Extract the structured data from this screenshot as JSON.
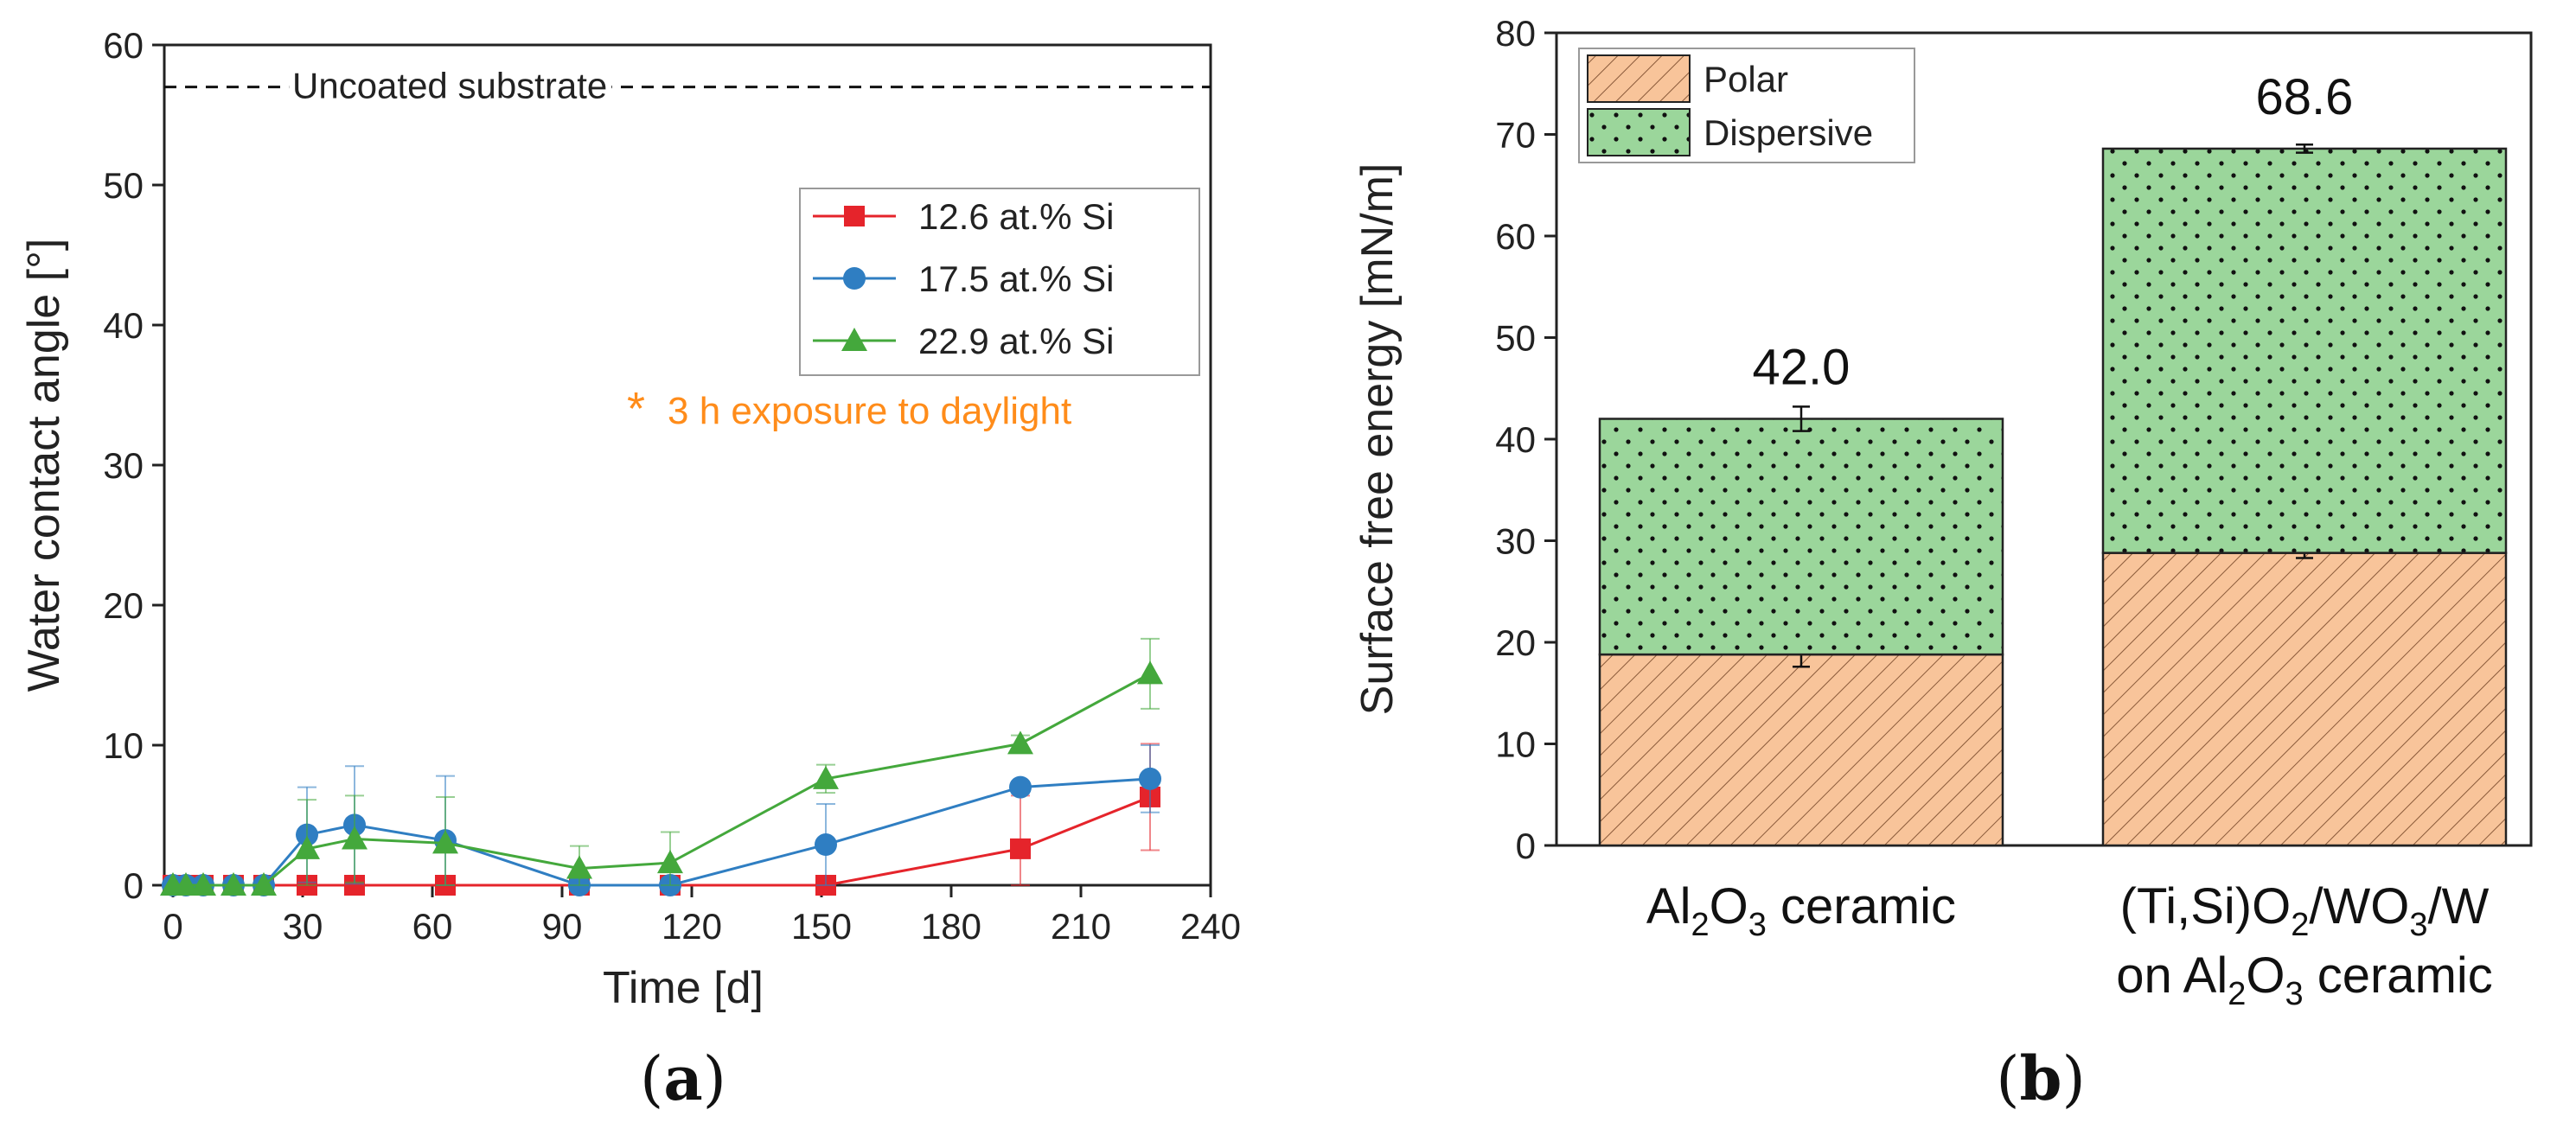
{
  "panels": {
    "a": {
      "label_open": "(",
      "label_letter": "a",
      "label_close": ")"
    },
    "b": {
      "label_open": "(",
      "label_letter": "b",
      "label_close": ")"
    }
  },
  "chart_data": [
    {
      "type": "line",
      "title": "",
      "xlabel": "Time [d]",
      "ylabel": "Water contact angle [°]",
      "xlim": [
        -2,
        240
      ],
      "ylim": [
        0,
        60
      ],
      "xticks": [
        0,
        30,
        60,
        90,
        120,
        150,
        180,
        210,
        240
      ],
      "yticks": [
        0,
        10,
        20,
        30,
        40,
        50,
        60
      ],
      "legend_position": "top-right",
      "reference_line": {
        "label": "Uncoated substrate",
        "y": 57
      },
      "annotation": {
        "marker": "*",
        "text": "3 h exposure to daylight",
        "point": {
          "x": 75,
          "y": 3.2
        },
        "color": "#ff8c1a"
      },
      "series": [
        {
          "name": "12.6 at.% Si",
          "color": "#e5242b",
          "marker": "square",
          "x": [
            0,
            3,
            7,
            14,
            21,
            31,
            42,
            63,
            94,
            115,
            151,
            196,
            226
          ],
          "y": [
            0,
            0,
            0,
            0,
            0,
            0,
            0,
            0,
            0,
            0,
            0,
            2.6,
            6.3
          ],
          "err": [
            0,
            0,
            0,
            0,
            0,
            0,
            0,
            0,
            0,
            0,
            0,
            3.8,
            3.8
          ]
        },
        {
          "name": "17.5 at.% Si",
          "color": "#2f7ec2",
          "marker": "circle",
          "x": [
            0,
            3,
            7,
            14,
            21,
            31,
            42,
            63,
            94,
            115,
            151,
            196,
            226
          ],
          "y": [
            0,
            0,
            0,
            0,
            0,
            3.6,
            4.3,
            3.2,
            0,
            0,
            2.9,
            7.0,
            7.6
          ],
          "err": [
            0,
            0,
            0,
            0,
            0,
            3.4,
            4.2,
            4.6,
            0,
            0,
            2.9,
            0.4,
            2.4
          ]
        },
        {
          "name": "22.9 at.% Si",
          "color": "#44a83c",
          "marker": "triangle",
          "x": [
            0,
            3,
            7,
            14,
            21,
            31,
            42,
            63,
            94,
            115,
            151,
            196,
            226
          ],
          "y": [
            0,
            0,
            0,
            0,
            0,
            2.6,
            3.3,
            3.0,
            1.2,
            1.6,
            7.6,
            10.1,
            15.1
          ],
          "err": [
            0,
            0,
            0,
            0,
            0,
            3.5,
            3.1,
            3.3,
            1.6,
            2.2,
            1.0,
            0.6,
            2.5
          ]
        }
      ]
    },
    {
      "type": "bar",
      "stacked": true,
      "title": "",
      "xlabel": "",
      "ylabel": "Surface free energy [mN/m]",
      "ylim": [
        0,
        80
      ],
      "yticks": [
        0,
        10,
        20,
        30,
        40,
        50,
        60,
        70,
        80
      ],
      "legend_position": "top-left",
      "categories": [
        {
          "parts": [
            [
              "Al",
              false
            ],
            [
              "2",
              true
            ],
            [
              "O",
              false
            ],
            [
              "3",
              true
            ],
            [
              " ceramic",
              false
            ]
          ]
        },
        {
          "parts": [
            [
              "(Ti,Si)O",
              false
            ],
            [
              "2",
              true
            ],
            [
              "/WO",
              false
            ],
            [
              "3",
              true
            ],
            [
              "/W",
              false
            ]
          ],
          "line2": [
            [
              "on Al",
              false
            ],
            [
              "2",
              true
            ],
            [
              "O",
              false
            ],
            [
              "3",
              true
            ],
            [
              " ceramic",
              false
            ]
          ]
        }
      ],
      "series": [
        {
          "name": "Polar",
          "color": "#f8c49a",
          "pattern": "hatch",
          "values": [
            18.8,
            28.8
          ],
          "err": [
            1.2,
            0.5
          ]
        },
        {
          "name": "Dispersive",
          "color": "#9bd69b",
          "pattern": "dots",
          "values": [
            23.2,
            39.8
          ],
          "err": [
            1.2,
            0.4
          ]
        }
      ],
      "totals": [
        "42.0",
        "68.6"
      ]
    }
  ]
}
